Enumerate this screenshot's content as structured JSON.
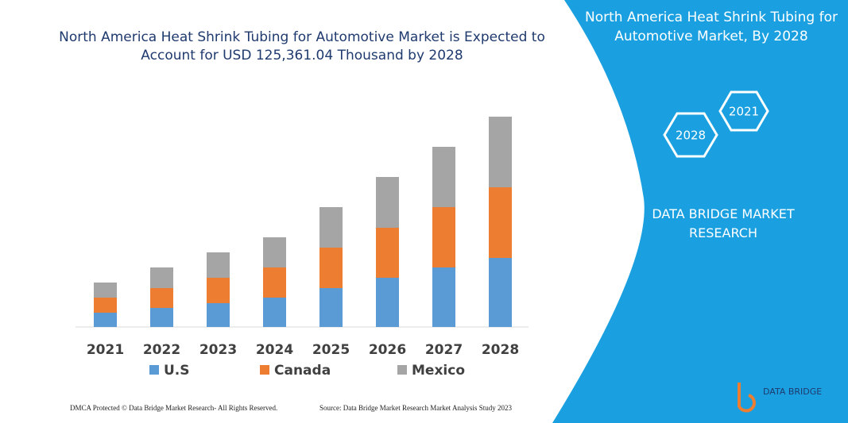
{
  "chart_data": {
    "type": "bar",
    "stacked": true,
    "title": "North America Heat Shrink Tubing for Automotive Market is Expected to Account for USD 125,361.04 Thousand by 2028",
    "categories": [
      "2021",
      "2022",
      "2023",
      "2024",
      "2025",
      "2026",
      "2027",
      "2028"
    ],
    "series": [
      {
        "name": "U.S",
        "color": "#5b9bd5",
        "values": [
          18,
          24,
          30,
          37,
          49,
          62,
          75,
          87
        ]
      },
      {
        "name": "Canada",
        "color": "#ed7d31",
        "values": [
          19,
          25,
          32,
          38,
          51,
          63,
          76,
          89
        ]
      },
      {
        "name": "Mexico",
        "color": "#a5a5a5",
        "values": [
          19,
          26,
          32,
          38,
          51,
          64,
          76,
          89
        ]
      }
    ]
  },
  "panel": {
    "title": "North America Heat Shrink Tubing for Automotive Market, By 2028",
    "hex_labels": [
      "2028",
      "2021"
    ],
    "brand": "DATA BRIDGE MARKET RESEARCH"
  },
  "footer": {
    "left": "DMCA Protected © Data Bridge Market Research- All Rights Reserved.",
    "right": "Source: Data Bridge Market Research Market Analysis Study 2023"
  },
  "logo": {
    "text": "DATA BRIDGE"
  }
}
